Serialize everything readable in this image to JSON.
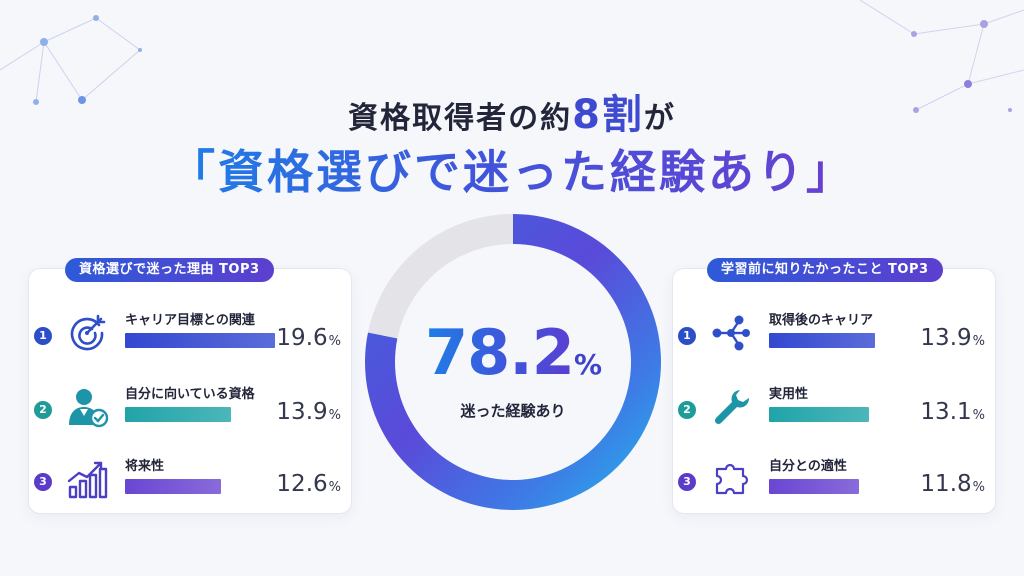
{
  "headline": {
    "prefix": "資格取得者の約",
    "emphasis": "8割",
    "suffix": "が"
  },
  "title": "「資格選びで迷った経験あり」",
  "chart_data": [
    {
      "type": "pie",
      "style": "donut",
      "categories": [
        "迷った経験あり",
        ""
      ],
      "values": [
        78.2,
        21.8
      ],
      "center_value": "78.2",
      "center_unit": "%",
      "center_label": "迷った経験あり",
      "colors": [
        "#3f55db",
        "#e4e4e8"
      ]
    },
    {
      "type": "bar",
      "orientation": "horizontal",
      "title": "資格選びで迷った理由 TOP3",
      "ranks": [
        "1",
        "2",
        "3"
      ],
      "categories": [
        "キャリア目標との関連",
        "自分に向いている資格",
        "将来性"
      ],
      "icons": [
        "target-icon",
        "person-check-icon",
        "growth-chart-icon"
      ],
      "values": [
        19.6,
        13.9,
        12.6
      ],
      "value_labels": [
        "19.6",
        "13.9",
        "12.6"
      ],
      "unit": "%",
      "rank_colors": [
        "#2c4fc9",
        "#1f9c9a",
        "#5b3bc8"
      ],
      "colors": [
        "#3248d0",
        "#20a4a8",
        "#6a46d2"
      ]
    },
    {
      "type": "bar",
      "orientation": "horizontal",
      "title": "学習前に知りたかったこと TOP3",
      "ranks": [
        "1",
        "2",
        "3"
      ],
      "categories": [
        "取得後のキャリア",
        "実用性",
        "自分との適性"
      ],
      "icons": [
        "branch-nodes-icon",
        "wrench-icon",
        "puzzle-piece-icon"
      ],
      "values": [
        13.9,
        13.1,
        11.8
      ],
      "value_labels": [
        "13.9",
        "13.1",
        "11.8"
      ],
      "unit": "%",
      "rank_colors": [
        "#2c4fc9",
        "#1f9c9a",
        "#5b3bc8"
      ],
      "colors": [
        "#3248d0",
        "#20a4a8",
        "#6a46d2"
      ]
    }
  ]
}
